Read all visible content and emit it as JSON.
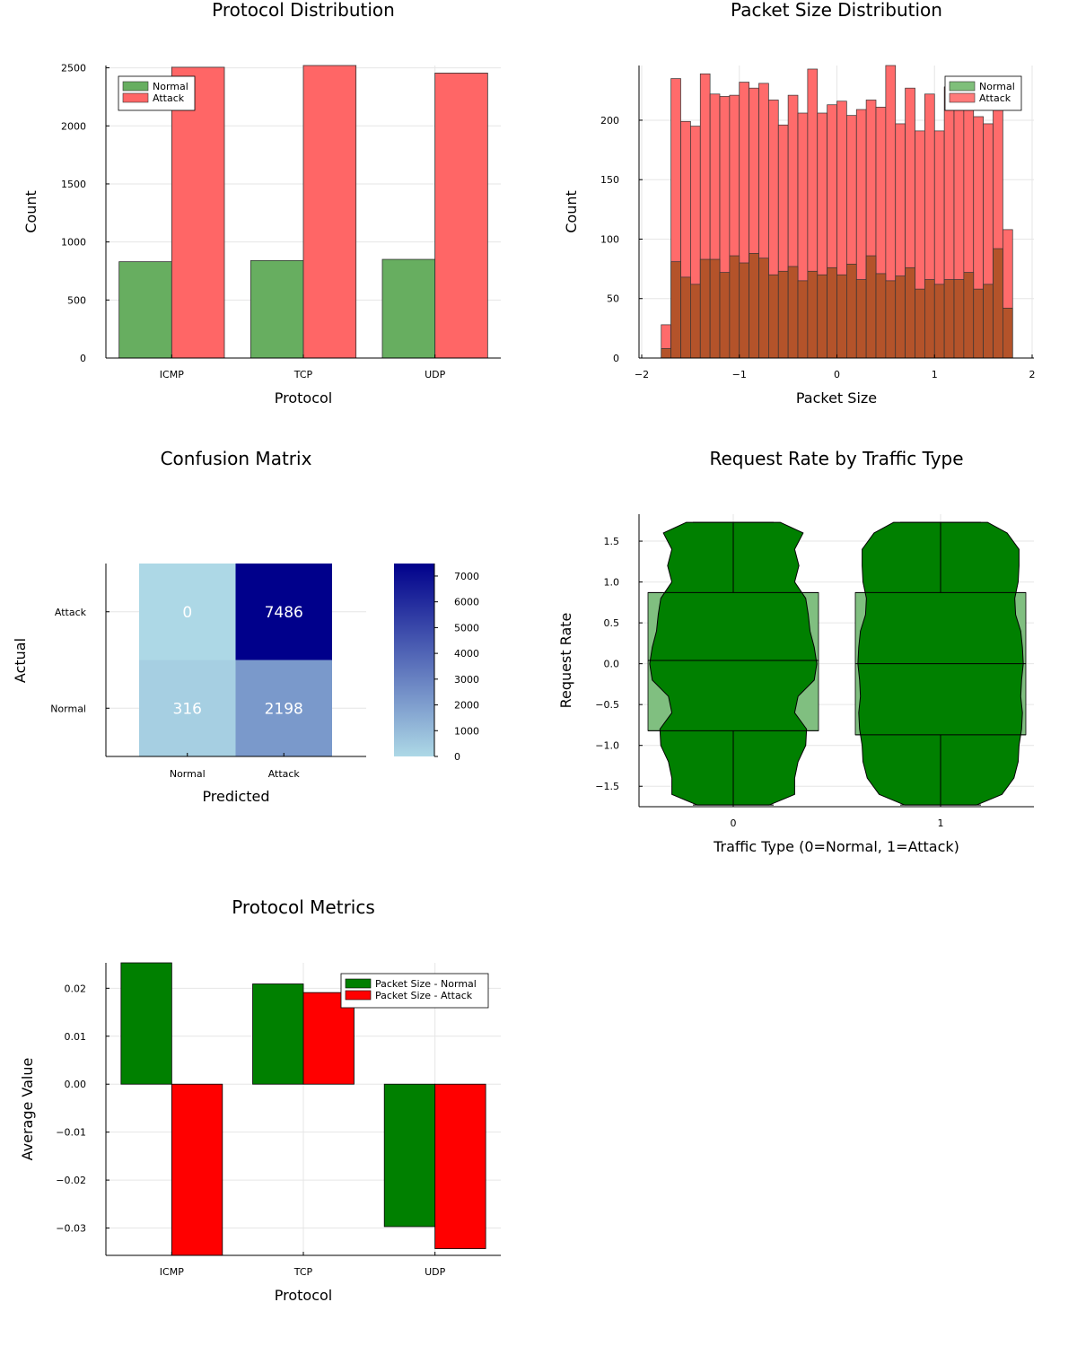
{
  "chart_data": [
    {
      "id": "protocol_distribution",
      "type": "bar",
      "title": "Protocol Distribution",
      "xlabel": "Protocol",
      "ylabel": "Count",
      "categories": [
        "ICMP",
        "TCP",
        "UDP"
      ],
      "series": [
        {
          "name": "Normal",
          "color": "#67ae60",
          "values": [
            830,
            840,
            850
          ]
        },
        {
          "name": "Attack",
          "color": "#ff6666",
          "values": [
            2505,
            2520,
            2455
          ]
        }
      ],
      "ylim": [
        0,
        2520
      ],
      "yticks": [
        0,
        500,
        1000,
        1500,
        2000,
        2500
      ],
      "legend": "top-left"
    },
    {
      "id": "packet_size_distribution",
      "type": "bar",
      "subtype": "histogram",
      "title": "Packet Size Distribution",
      "xlabel": "Packet Size",
      "ylabel": "Count",
      "bin_start": -1.8,
      "bin_width": 0.1,
      "series": [
        {
          "name": "Normal",
          "color": "#67ae60",
          "values": [
            8,
            81,
            68,
            62,
            83,
            83,
            72,
            86,
            80,
            88,
            84,
            70,
            73,
            77,
            65,
            73,
            70,
            76,
            70,
            79,
            66,
            86,
            71,
            65,
            69,
            76,
            58,
            66,
            62,
            66,
            66,
            72,
            58,
            62,
            92,
            42
          ]
        },
        {
          "name": "Attack",
          "color": "#ff6b6b",
          "values": [
            28,
            235,
            199,
            195,
            239,
            222,
            220,
            221,
            232,
            227,
            231,
            217,
            196,
            221,
            206,
            243,
            206,
            213,
            216,
            204,
            209,
            217,
            211,
            246,
            197,
            227,
            191,
            222,
            191,
            228,
            231,
            229,
            203,
            197,
            226,
            108
          ]
        }
      ],
      "overlap_color": "#b4532a",
      "xlim": [
        -2,
        2
      ],
      "xticks": [
        -2,
        -1,
        0,
        1,
        2
      ],
      "xtick_labels": [
        "−2",
        "−1",
        "0",
        "1",
        "2"
      ],
      "ylim": [
        0,
        246
      ],
      "yticks": [
        0,
        50,
        100,
        150,
        200
      ],
      "legend": "top-right"
    },
    {
      "id": "confusion_matrix",
      "type": "heatmap",
      "title": "Confusion Matrix",
      "xlabel": "Predicted",
      "ylabel": "Actual",
      "x_categories": [
        "Normal",
        "Attack"
      ],
      "y_categories": [
        "Normal",
        "Attack"
      ],
      "matrix": [
        [
          316,
          2198
        ],
        [
          0,
          7486
        ]
      ],
      "colorbar_range": [
        0,
        7486
      ],
      "colorbar_ticks": [
        0,
        1000,
        2000,
        3000,
        4000,
        5000,
        6000,
        7000
      ],
      "colormap": [
        "#add8e6",
        "#00008b"
      ]
    },
    {
      "id": "request_rate_violin",
      "type": "violin",
      "title": "Request Rate by Traffic Type",
      "xlabel": "Traffic Type (0=Normal, 1=Attack)",
      "ylabel": "Request Rate",
      "categories": [
        "0",
        "1"
      ],
      "groups": [
        {
          "name": "0",
          "min": -1.73,
          "q1": -0.82,
          "median": 0.04,
          "q3": 0.87,
          "max": 1.73
        },
        {
          "name": "1",
          "min": -1.73,
          "q1": -0.87,
          "median": 0.0,
          "q3": 0.87,
          "max": 1.73
        }
      ],
      "color": "#008000",
      "box_color": "#80bf80",
      "ylim": [
        -1.75,
        1.83
      ],
      "yticks": [
        -1.5,
        -1.0,
        -0.5,
        0.0,
        0.5,
        1.0,
        1.5
      ],
      "ytick_labels": [
        "−1.5",
        "−1.0",
        "−0.5",
        "0.0",
        "0.5",
        "1.0",
        "1.5"
      ]
    },
    {
      "id": "protocol_metrics",
      "type": "bar",
      "title": "Protocol Metrics",
      "xlabel": "Protocol",
      "ylabel": "Average Value",
      "categories": [
        "ICMP",
        "TCP",
        "UDP"
      ],
      "series": [
        {
          "name": "Packet Size - Normal",
          "color": "#008000",
          "values": [
            0.0253,
            0.0209,
            -0.0297
          ]
        },
        {
          "name": "Packet Size - Attack",
          "color": "#ff0000",
          "values": [
            -0.036,
            0.0191,
            -0.0343
          ]
        }
      ],
      "ylim": [
        -0.0357,
        0.0253
      ],
      "yticks": [
        -0.03,
        -0.02,
        -0.01,
        0.0,
        0.01,
        0.02
      ],
      "ytick_labels": [
        "−0.03",
        "−0.02",
        "−0.01",
        "0.00",
        "0.01",
        "0.02"
      ],
      "legend": "top-right"
    }
  ]
}
